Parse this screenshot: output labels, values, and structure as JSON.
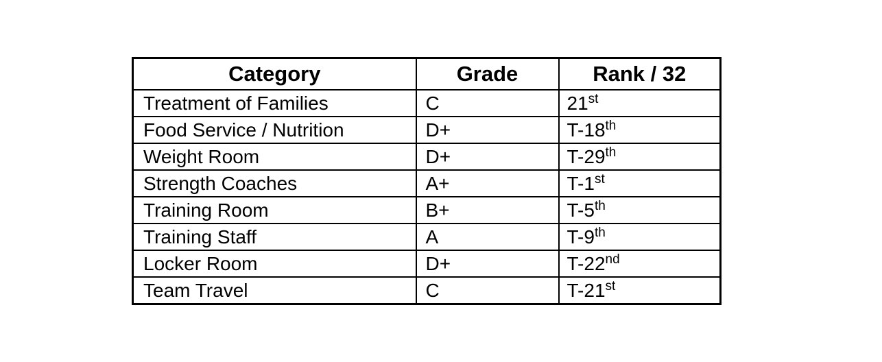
{
  "page": {
    "background_color": "#ffffff",
    "text_color": "#000000",
    "border_color": "#000000"
  },
  "table": {
    "columns": [
      {
        "key": "category",
        "label": "Category"
      },
      {
        "key": "grade",
        "label": "Grade"
      },
      {
        "key": "rank",
        "label": "Rank / 32"
      }
    ],
    "rows": [
      {
        "category": "Treatment of Families",
        "grade": "C",
        "rank_base": "21",
        "rank_sup": "st"
      },
      {
        "category": "Food Service / Nutrition",
        "grade": "D+",
        "rank_base": "T-18",
        "rank_sup": "th"
      },
      {
        "category": "Weight Room",
        "grade": "D+",
        "rank_base": "T-29",
        "rank_sup": "th"
      },
      {
        "category": "Strength Coaches",
        "grade": "A+",
        "rank_base": "T-1",
        "rank_sup": "st"
      },
      {
        "category": "Training Room",
        "grade": "B+",
        "rank_base": "T-5",
        "rank_sup": "th"
      },
      {
        "category": "Training Staff",
        "grade": "A",
        "rank_base": "T-9",
        "rank_sup": "th"
      },
      {
        "category": "Locker Room",
        "grade": "D+",
        "rank_base": "T-22",
        "rank_sup": "nd"
      },
      {
        "category": "Team Travel",
        "grade": "C",
        "rank_base": "T-21",
        "rank_sup": "st"
      }
    ]
  }
}
